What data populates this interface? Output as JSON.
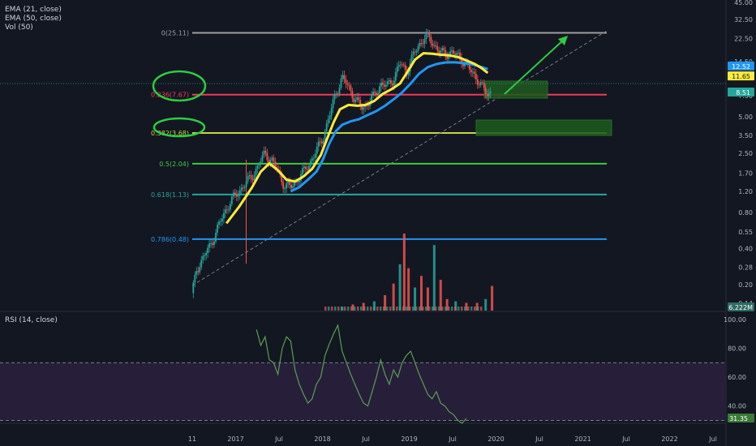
{
  "indicators": {
    "ema21": "EMA (21, close)",
    "ema50": "EMA (50, close)",
    "vol": "Vol (50)",
    "rsi": "RSI (14, close)"
  },
  "colors": {
    "background": "#131722",
    "up_candle": "#26a69a",
    "down_candle": "#ef5350",
    "ema21": "#ffeb3b",
    "ema50": "#2196f3",
    "rsi_line": "#5b9e52",
    "rsi_band": "#2a1f3d",
    "trend_arrow": "#2ecc40",
    "circle": "#2ecc40",
    "target_box": "#1e5a1e"
  },
  "chart_data": [
    {
      "type": "candlestick",
      "scale": "log",
      "ylim": [
        0.12,
        45
      ],
      "price_ticks": [
        "45.00",
        "32.50",
        "22.50",
        "14.50",
        "7.50",
        "5.00",
        "3.50",
        "2.50",
        "1.70",
        "1.20",
        "0.80",
        "0.55",
        "0.40",
        "0.28",
        "0.20",
        "0.14"
      ],
      "time_ticks": [
        "11",
        "2017",
        "Jul",
        "2018",
        "Jul",
        "2019",
        "Jul",
        "2020",
        "Jul",
        "2021",
        "Jul",
        "2022",
        "Jul"
      ],
      "price_badges": [
        {
          "value": "12.52",
          "color": "#2196f3"
        },
        {
          "value": "11.65",
          "color": "#ffeb3b"
        },
        {
          "value": "8.51",
          "color": "#26a69a"
        }
      ],
      "volume_badge": "6.222M",
      "fib_levels": [
        {
          "ratio": "0",
          "price": 25.11,
          "label": "0(25.11)",
          "color": "#9e9e9e"
        },
        {
          "ratio": "0.236",
          "price": 7.67,
          "label": "0.236(7.67)",
          "color": "#f23a5c"
        },
        {
          "ratio": "0.382",
          "price": 3.68,
          "label": "0.382(3.68)",
          "color": "#c6d93a"
        },
        {
          "ratio": "0.5",
          "price": 2.04,
          "label": "0.5(2.04)",
          "color": "#3ec93e"
        },
        {
          "ratio": "0.618",
          "price": 1.13,
          "label": "0.618(1.13)",
          "color": "#26a69a"
        },
        {
          "ratio": "0.786",
          "price": 0.48,
          "label": "0.786(0.48)",
          "color": "#2196f3"
        }
      ],
      "price_series": [
        {
          "t": 0,
          "p": 0.17
        },
        {
          "t": 0.02,
          "p": 0.27
        },
        {
          "t": 0.05,
          "p": 0.33
        },
        {
          "t": 0.09,
          "p": 0.45
        },
        {
          "t": 0.12,
          "p": 0.6
        },
        {
          "t": 0.15,
          "p": 0.8
        },
        {
          "t": 0.18,
          "p": 1.0
        },
        {
          "t": 0.21,
          "p": 1.15
        },
        {
          "t": 0.24,
          "p": 1.35
        },
        {
          "t": 0.28,
          "p": 1.6
        },
        {
          "t": 0.31,
          "p": 2.0
        },
        {
          "t": 0.34,
          "p": 2.5
        },
        {
          "t": 0.37,
          "p": 2.2
        },
        {
          "t": 0.4,
          "p": 1.75
        },
        {
          "t": 0.43,
          "p": 1.35
        },
        {
          "t": 0.46,
          "p": 1.3
        },
        {
          "t": 0.49,
          "p": 1.5
        },
        {
          "t": 0.52,
          "p": 1.75
        },
        {
          "t": 0.55,
          "p": 2.1
        },
        {
          "t": 0.58,
          "p": 2.6
        },
        {
          "t": 0.61,
          "p": 3.4
        },
        {
          "t": 0.64,
          "p": 5.0
        },
        {
          "t": 0.67,
          "p": 8.0
        },
        {
          "t": 0.7,
          "p": 10.5
        },
        {
          "t": 0.73,
          "p": 9.0
        },
        {
          "t": 0.76,
          "p": 7.0
        },
        {
          "t": 0.79,
          "p": 6.0
        },
        {
          "t": 0.82,
          "p": 6.5
        },
        {
          "t": 0.85,
          "p": 7.5
        },
        {
          "t": 0.88,
          "p": 9.5
        },
        {
          "t": 0.91,
          "p": 9.0
        },
        {
          "t": 0.94,
          "p": 10.5
        },
        {
          "t": 0.97,
          "p": 14.0
        },
        {
          "t": 1.0,
          "p": 12.0
        },
        {
          "t": 1.03,
          "p": 16.0
        },
        {
          "t": 1.06,
          "p": 20.0
        },
        {
          "t": 1.09,
          "p": 24.0
        },
        {
          "t": 1.12,
          "p": 21.0
        },
        {
          "t": 1.15,
          "p": 18.0
        },
        {
          "t": 1.18,
          "p": 16.5
        },
        {
          "t": 1.21,
          "p": 17.5
        },
        {
          "t": 1.24,
          "p": 16.0
        },
        {
          "t": 1.27,
          "p": 14.5
        },
        {
          "t": 1.3,
          "p": 12.0
        },
        {
          "t": 1.33,
          "p": 10.5
        },
        {
          "t": 1.36,
          "p": 8.5
        },
        {
          "t": 1.38,
          "p": 7.6
        },
        {
          "t": 1.4,
          "p": 8.51
        }
      ],
      "ema21_series": [
        {
          "t": 0.16,
          "p": 0.65
        },
        {
          "t": 0.22,
          "p": 0.9
        },
        {
          "t": 0.28,
          "p": 1.3
        },
        {
          "t": 0.32,
          "p": 1.75
        },
        {
          "t": 0.36,
          "p": 2.05
        },
        {
          "t": 0.4,
          "p": 1.8
        },
        {
          "t": 0.44,
          "p": 1.5
        },
        {
          "t": 0.48,
          "p": 1.45
        },
        {
          "t": 0.52,
          "p": 1.6
        },
        {
          "t": 0.56,
          "p": 1.85
        },
        {
          "t": 0.6,
          "p": 2.4
        },
        {
          "t": 0.63,
          "p": 3.3
        },
        {
          "t": 0.66,
          "p": 4.5
        },
        {
          "t": 0.69,
          "p": 5.8
        },
        {
          "t": 0.73,
          "p": 6.3
        },
        {
          "t": 0.77,
          "p": 6.2
        },
        {
          "t": 0.81,
          "p": 6.3
        },
        {
          "t": 0.85,
          "p": 6.8
        },
        {
          "t": 0.89,
          "p": 7.8
        },
        {
          "t": 0.93,
          "p": 8.5
        },
        {
          "t": 0.97,
          "p": 9.5
        },
        {
          "t": 1.0,
          "p": 11.5
        },
        {
          "t": 1.04,
          "p": 15.0
        },
        {
          "t": 1.08,
          "p": 17.0
        },
        {
          "t": 1.12,
          "p": 16.8
        },
        {
          "t": 1.16,
          "p": 16.5
        },
        {
          "t": 1.2,
          "p": 16.3
        },
        {
          "t": 1.24,
          "p": 15.8
        },
        {
          "t": 1.28,
          "p": 14.8
        },
        {
          "t": 1.32,
          "p": 13.8
        },
        {
          "t": 1.35,
          "p": 12.8
        },
        {
          "t": 1.38,
          "p": 11.65
        }
      ],
      "ema50_series": [
        {
          "t": 0.46,
          "p": 1.2
        },
        {
          "t": 0.5,
          "p": 1.3
        },
        {
          "t": 0.54,
          "p": 1.5
        },
        {
          "t": 0.58,
          "p": 1.75
        },
        {
          "t": 0.61,
          "p": 2.2
        },
        {
          "t": 0.64,
          "p": 3.0
        },
        {
          "t": 0.67,
          "p": 3.8
        },
        {
          "t": 0.7,
          "p": 4.3
        },
        {
          "t": 0.74,
          "p": 4.6
        },
        {
          "t": 0.78,
          "p": 4.8
        },
        {
          "t": 0.82,
          "p": 5.2
        },
        {
          "t": 0.86,
          "p": 5.6
        },
        {
          "t": 0.9,
          "p": 6.2
        },
        {
          "t": 0.94,
          "p": 7.0
        },
        {
          "t": 0.98,
          "p": 8.0
        },
        {
          "t": 1.02,
          "p": 9.5
        },
        {
          "t": 1.06,
          "p": 11.5
        },
        {
          "t": 1.1,
          "p": 13.0
        },
        {
          "t": 1.14,
          "p": 13.8
        },
        {
          "t": 1.18,
          "p": 14.2
        },
        {
          "t": 1.22,
          "p": 14.3
        },
        {
          "t": 1.26,
          "p": 14.1
        },
        {
          "t": 1.3,
          "p": 13.8
        },
        {
          "t": 1.34,
          "p": 13.2
        },
        {
          "t": 1.38,
          "p": 12.52
        }
      ],
      "volume_series": [
        {
          "t": 0.7,
          "v": 0.05
        },
        {
          "t": 0.75,
          "v": 0.08
        },
        {
          "t": 0.8,
          "v": 0.1
        },
        {
          "t": 0.85,
          "v": 0.12
        },
        {
          "t": 0.9,
          "v": 0.2
        },
        {
          "t": 0.94,
          "v": 0.35
        },
        {
          "t": 0.97,
          "v": 0.6
        },
        {
          "t": 0.99,
          "v": 1.0
        },
        {
          "t": 1.01,
          "v": 0.55
        },
        {
          "t": 1.04,
          "v": 0.3
        },
        {
          "t": 1.07,
          "v": 0.45
        },
        {
          "t": 1.1,
          "v": 0.3
        },
        {
          "t": 1.13,
          "v": 0.85
        },
        {
          "t": 1.16,
          "v": 0.4
        },
        {
          "t": 1.19,
          "v": 0.15
        },
        {
          "t": 1.23,
          "v": 0.12
        },
        {
          "t": 1.28,
          "v": 0.1
        },
        {
          "t": 1.33,
          "v": 0.1
        },
        {
          "t": 1.37,
          "v": 0.15
        },
        {
          "t": 1.4,
          "v": 0.32
        }
      ]
    },
    {
      "type": "line",
      "ylim": [
        28,
        100
      ],
      "ticks": [
        "100.00",
        "80.00",
        "60.00",
        "40.00"
      ],
      "overbought": 70,
      "oversold": 30,
      "current_badge": "31.35",
      "series": [
        {
          "t": 0.3,
          "v": 93
        },
        {
          "t": 0.32,
          "v": 82
        },
        {
          "t": 0.34,
          "v": 88
        },
        {
          "t": 0.36,
          "v": 72
        },
        {
          "t": 0.38,
          "v": 70
        },
        {
          "t": 0.4,
          "v": 62
        },
        {
          "t": 0.42,
          "v": 80
        },
        {
          "t": 0.44,
          "v": 88
        },
        {
          "t": 0.46,
          "v": 85
        },
        {
          "t": 0.48,
          "v": 65
        },
        {
          "t": 0.5,
          "v": 55
        },
        {
          "t": 0.52,
          "v": 48
        },
        {
          "t": 0.54,
          "v": 42
        },
        {
          "t": 0.56,
          "v": 45
        },
        {
          "t": 0.58,
          "v": 55
        },
        {
          "t": 0.6,
          "v": 60
        },
        {
          "t": 0.62,
          "v": 75
        },
        {
          "t": 0.64,
          "v": 83
        },
        {
          "t": 0.66,
          "v": 90
        },
        {
          "t": 0.68,
          "v": 96
        },
        {
          "t": 0.7,
          "v": 78
        },
        {
          "t": 0.72,
          "v": 70
        },
        {
          "t": 0.74,
          "v": 62
        },
        {
          "t": 0.76,
          "v": 55
        },
        {
          "t": 0.78,
          "v": 48
        },
        {
          "t": 0.8,
          "v": 42
        },
        {
          "t": 0.82,
          "v": 40
        },
        {
          "t": 0.84,
          "v": 50
        },
        {
          "t": 0.86,
          "v": 60
        },
        {
          "t": 0.88,
          "v": 72
        },
        {
          "t": 0.9,
          "v": 62
        },
        {
          "t": 0.92,
          "v": 55
        },
        {
          "t": 0.94,
          "v": 65
        },
        {
          "t": 0.96,
          "v": 60
        },
        {
          "t": 0.98,
          "v": 70
        },
        {
          "t": 1.0,
          "v": 75
        },
        {
          "t": 1.02,
          "v": 78
        },
        {
          "t": 1.04,
          "v": 70
        },
        {
          "t": 1.06,
          "v": 62
        },
        {
          "t": 1.08,
          "v": 55
        },
        {
          "t": 1.1,
          "v": 48
        },
        {
          "t": 1.12,
          "v": 45
        },
        {
          "t": 1.14,
          "v": 50
        },
        {
          "t": 1.16,
          "v": 42
        },
        {
          "t": 1.18,
          "v": 40
        },
        {
          "t": 1.2,
          "v": 36
        },
        {
          "t": 1.22,
          "v": 34
        },
        {
          "t": 1.24,
          "v": 30
        },
        {
          "t": 1.26,
          "v": 28
        },
        {
          "t": 1.28,
          "v": 31.35
        }
      ]
    }
  ]
}
